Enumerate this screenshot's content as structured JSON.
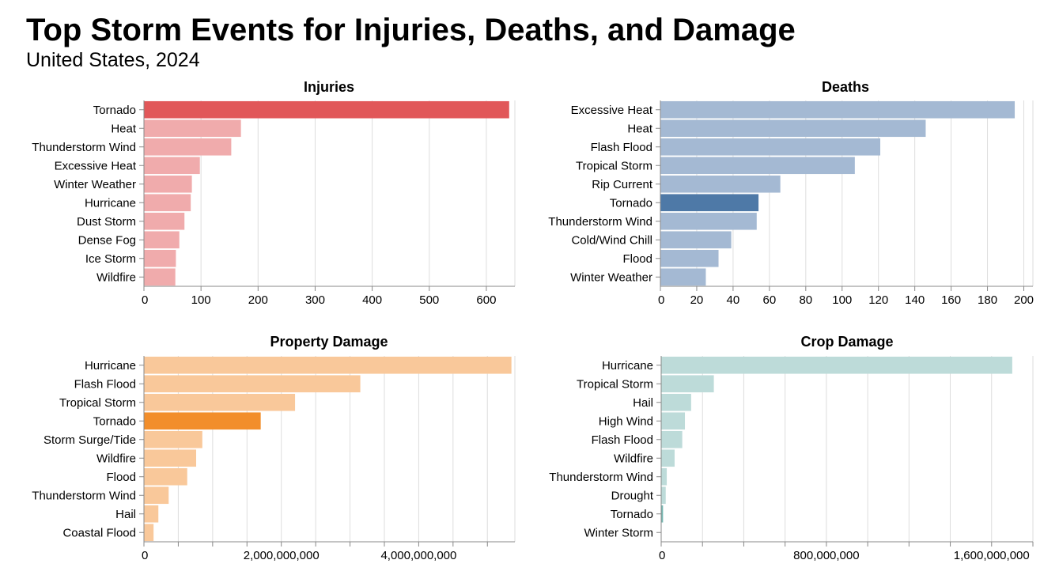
{
  "header": {
    "title": "Top Storm Events for Injuries, Deaths, and Damage",
    "subtitle": "United States, 2024"
  },
  "chart_data": [
    {
      "type": "bar",
      "orientation": "horizontal",
      "title": "Injuries",
      "highlight": "Tornado",
      "color_base": "#f0abac",
      "color_highlight": "#e15759",
      "xlim": [
        0,
        650
      ],
      "ticks": [
        0,
        100,
        200,
        300,
        400,
        500,
        600
      ],
      "tick_labels": [
        "0",
        "100",
        "200",
        "300",
        "400",
        "500",
        "600"
      ],
      "grid": true,
      "categories": [
        "Tornado",
        "Heat",
        "Thunderstorm Wind",
        "Excessive Heat",
        "Winter Weather",
        "Hurricane",
        "Dust Storm",
        "Dense Fog",
        "Ice Storm",
        "Wildfire"
      ],
      "values": [
        640,
        170,
        153,
        98,
        84,
        82,
        71,
        62,
        56,
        55
      ]
    },
    {
      "type": "bar",
      "orientation": "horizontal",
      "title": "Deaths",
      "highlight": "Tornado",
      "color_base": "#a4b9d3",
      "color_highlight": "#4e79a7",
      "xlim": [
        0,
        205
      ],
      "ticks": [
        0,
        20,
        40,
        60,
        80,
        100,
        120,
        140,
        160,
        180,
        200
      ],
      "tick_labels": [
        "0",
        "20",
        "40",
        "60",
        "80",
        "100",
        "120",
        "140",
        "160",
        "180",
        "200"
      ],
      "grid": true,
      "categories": [
        "Excessive Heat",
        "Heat",
        "Flash Flood",
        "Tropical Storm",
        "Rip Current",
        "Tornado",
        "Thunderstorm Wind",
        "Cold/Wind Chill",
        "Flood",
        "Winter Weather"
      ],
      "values": [
        195,
        146,
        121,
        107,
        66,
        54,
        53,
        39,
        32,
        25
      ]
    },
    {
      "type": "bar",
      "orientation": "horizontal",
      "title": "Property Damage",
      "highlight": "Tornado",
      "color_base": "#f9c89a",
      "color_highlight": "#f28e2b",
      "xlim": [
        0,
        5400000000
      ],
      "ticks": [
        0,
        500000000,
        1000000000,
        1500000000,
        2000000000,
        2500000000,
        3000000000,
        3500000000,
        4000000000,
        4500000000,
        5000000000
      ],
      "tick_labels": [
        "0",
        "",
        "",
        "",
        "2,000,000,000",
        "",
        "",
        "",
        "4,000,000,000",
        "",
        ""
      ],
      "grid": true,
      "categories": [
        "Hurricane",
        "Flash Flood",
        "Tropical Storm",
        "Tornado",
        "Storm Surge/Tide",
        "Wildfire",
        "Flood",
        "Thunderstorm Wind",
        "Hail",
        "Coastal Flood"
      ],
      "values": [
        5350000000,
        3150000000,
        2200000000,
        1700000000,
        850000000,
        760000000,
        630000000,
        360000000,
        210000000,
        140000000
      ]
    },
    {
      "type": "bar",
      "orientation": "horizontal",
      "title": "Crop Damage",
      "highlight": "Tornado",
      "color_base": "#bddbd9",
      "color_highlight": "#76b7b2",
      "xlim": [
        0,
        1800000000
      ],
      "ticks": [
        0,
        200000000,
        400000000,
        600000000,
        800000000,
        1000000000,
        1200000000,
        1400000000,
        1600000000,
        1800000000
      ],
      "tick_labels": [
        "0",
        "",
        "",
        "",
        "800,000,000",
        "",
        "",
        "",
        "1,600,000,000",
        ""
      ],
      "grid": true,
      "categories": [
        "Hurricane",
        "Tropical Storm",
        "Hail",
        "High Wind",
        "Flash Flood",
        "Wildfire",
        "Thunderstorm Wind",
        "Drought",
        "Tornado",
        "Winter Storm"
      ],
      "values": [
        1700000000,
        255000000,
        145000000,
        115000000,
        102000000,
        65000000,
        27000000,
        22000000,
        9000000,
        1500000
      ]
    }
  ]
}
